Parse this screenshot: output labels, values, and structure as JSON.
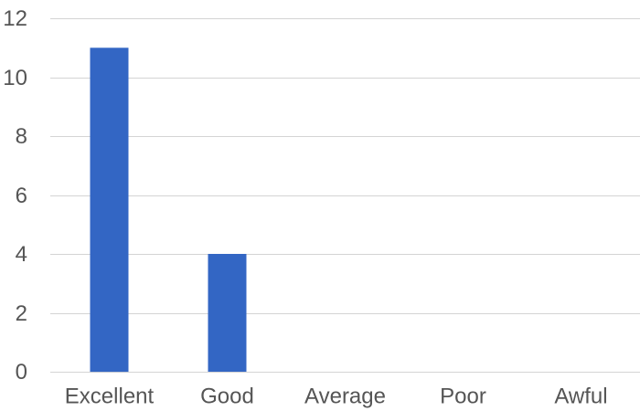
{
  "colors": {
    "bar": "#3366c4",
    "grid": "#d4d4d4",
    "text": "#555555",
    "background": "#ffffff"
  },
  "chart_data": {
    "type": "bar",
    "categories": [
      "Excellent",
      "Good",
      "Average",
      "Poor",
      "Awful"
    ],
    "values": [
      11,
      4,
      0,
      0,
      0
    ],
    "ylim": [
      0,
      12
    ],
    "yticks": [
      0,
      2,
      4,
      6,
      8,
      10,
      12
    ],
    "grid": true,
    "legend": "none",
    "title": "",
    "xlabel": "",
    "ylabel": ""
  }
}
